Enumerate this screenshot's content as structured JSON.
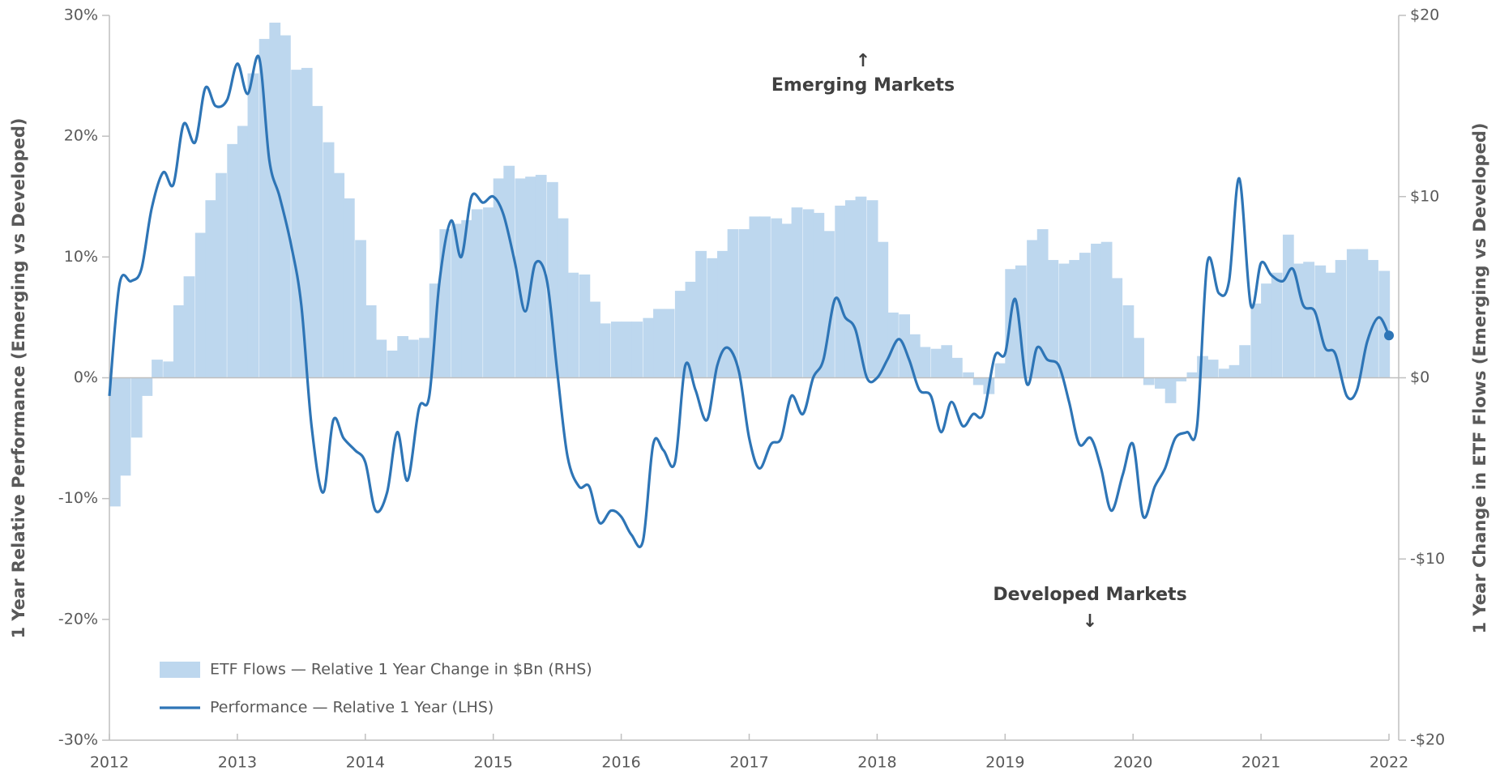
{
  "chart_data": {
    "type": "bar-line",
    "y_label": "1 Year Relative Performance (Emerging vs Developed)",
    "y2_label": "1 Year Change in ETF Flows (Emerging vs Developed)",
    "annotations": [
      "↑",
      "Emerging Markets",
      "Developed Markets",
      "↓"
    ],
    "xlim": [
      2012,
      2022
    ],
    "xticks": [
      2012,
      2013,
      2014,
      2015,
      2016,
      2017,
      2018,
      2019,
      2020,
      2021,
      2022
    ],
    "ylim": [
      -30,
      30
    ],
    "yticks": [
      {
        "value": -30,
        "label": "-30%"
      },
      {
        "value": -20,
        "label": "-20%"
      },
      {
        "value": -10,
        "label": "-10%"
      },
      {
        "value": 0,
        "label": "0%"
      },
      {
        "value": 10,
        "label": "10%"
      },
      {
        "value": 20,
        "label": "20%"
      },
      {
        "value": 30,
        "label": "30%"
      }
    ],
    "y2lim": [
      -20,
      20
    ],
    "y2ticks": [
      {
        "value": -20,
        "label": "-$20"
      },
      {
        "value": -10,
        "label": "-$10"
      },
      {
        "value": 0,
        "label": "$0"
      },
      {
        "value": 10,
        "label": "$10"
      },
      {
        "value": 20,
        "label": "$20"
      }
    ],
    "series": [
      {
        "name": "ETF Flows — Relative 1 Year Change in $Bn (RHS)",
        "color": "#bdd7ee",
        "axis": "y2",
        "kind": "bar",
        "x": [
          2012,
          2012.08,
          2012.17,
          2012.25,
          2012.33,
          2012.42,
          2012.5,
          2012.58,
          2012.67,
          2012.75,
          2012.83,
          2012.92,
          2013,
          2013.08,
          2013.17,
          2013.25,
          2013.33,
          2013.42,
          2013.5,
          2013.58,
          2013.67,
          2013.75,
          2013.83,
          2013.92,
          2014,
          2014.08,
          2014.17,
          2014.25,
          2014.33,
          2014.42,
          2014.5,
          2014.58,
          2014.67,
          2014.75,
          2014.83,
          2014.92,
          2015,
          2015.08,
          2015.17,
          2015.25,
          2015.33,
          2015.42,
          2015.5,
          2015.58,
          2015.67,
          2015.75,
          2015.83,
          2015.92,
          2016,
          2016.08,
          2016.17,
          2016.25,
          2016.33,
          2016.42,
          2016.5,
          2016.58,
          2016.67,
          2016.75,
          2016.83,
          2016.92,
          2017,
          2017.08,
          2017.17,
          2017.25,
          2017.33,
          2017.42,
          2017.5,
          2017.58,
          2017.67,
          2017.75,
          2017.83,
          2017.92,
          2018,
          2018.08,
          2018.17,
          2018.25,
          2018.33,
          2018.42,
          2018.5,
          2018.58,
          2018.67,
          2018.75,
          2018.83,
          2018.92,
          2019,
          2019.08,
          2019.17,
          2019.25,
          2019.33,
          2019.42,
          2019.5,
          2019.58,
          2019.67,
          2019.75,
          2019.83,
          2019.92,
          2020,
          2020.08,
          2020.17,
          2020.25,
          2020.33,
          2020.42,
          2020.5,
          2020.58,
          2020.67,
          2020.75,
          2020.83,
          2020.92,
          2021,
          2021.08,
          2021.17,
          2021.25,
          2021.33,
          2021.42,
          2021.5,
          2021.58,
          2021.67,
          2021.75,
          2021.83,
          2021.92
        ],
        "values": [
          -7.1,
          -5.4,
          -3.3,
          -1.0,
          1.0,
          0.9,
          4.0,
          5.6,
          8.0,
          9.8,
          11.3,
          12.9,
          13.9,
          16.8,
          18.7,
          19.6,
          18.9,
          17.0,
          17.1,
          15.0,
          13.0,
          11.3,
          9.9,
          7.6,
          4.0,
          2.1,
          1.5,
          2.3,
          2.1,
          2.2,
          5.2,
          8.2,
          8.5,
          8.7,
          9.3,
          9.4,
          11.0,
          11.7,
          11.0,
          11.1,
          11.2,
          10.8,
          8.8,
          5.8,
          5.7,
          4.2,
          3.0,
          3.1,
          3.1,
          3.1,
          3.3,
          3.8,
          3.8,
          4.8,
          5.3,
          7.0,
          6.6,
          7.0,
          8.2,
          8.2,
          8.9,
          8.9,
          8.8,
          8.5,
          9.4,
          9.3,
          9.1,
          8.1,
          9.5,
          9.8,
          10.0,
          9.8,
          7.5,
          3.6,
          3.5,
          2.4,
          1.7,
          1.6,
          1.8,
          1.1,
          0.3,
          -0.4,
          -0.9,
          0.8,
          6.0,
          6.2,
          7.6,
          8.2,
          6.5,
          6.3,
          6.5,
          6.9,
          7.4,
          7.5,
          5.5,
          4.0,
          2.2,
          -0.4,
          -0.6,
          -1.4,
          -0.2,
          0.3,
          1.2,
          1.0,
          0.5,
          0.7,
          1.8,
          4.1,
          5.2,
          5.8,
          7.9,
          6.3,
          6.4,
          6.2,
          5.8,
          6.5,
          7.1,
          7.1,
          6.5,
          5.9
        ]
      },
      {
        "name": "Performance — Relative 1 Year (LHS)",
        "color": "#2e75b6",
        "axis": "y",
        "kind": "line",
        "x": [
          2012,
          2012.08,
          2012.17,
          2012.25,
          2012.33,
          2012.42,
          2012.5,
          2012.58,
          2012.67,
          2012.75,
          2012.83,
          2012.92,
          2013,
          2013.08,
          2013.17,
          2013.25,
          2013.33,
          2013.42,
          2013.5,
          2013.58,
          2013.67,
          2013.75,
          2013.83,
          2013.92,
          2014,
          2014.08,
          2014.17,
          2014.25,
          2014.33,
          2014.42,
          2014.5,
          2014.58,
          2014.67,
          2014.75,
          2014.83,
          2014.92,
          2015,
          2015.08,
          2015.17,
          2015.25,
          2015.33,
          2015.42,
          2015.5,
          2015.58,
          2015.67,
          2015.75,
          2015.83,
          2015.92,
          2016,
          2016.08,
          2016.17,
          2016.25,
          2016.33,
          2016.42,
          2016.5,
          2016.58,
          2016.67,
          2016.75,
          2016.83,
          2016.92,
          2017,
          2017.08,
          2017.17,
          2017.25,
          2017.33,
          2017.42,
          2017.5,
          2017.58,
          2017.67,
          2017.75,
          2017.83,
          2017.92,
          2018,
          2018.08,
          2018.17,
          2018.25,
          2018.33,
          2018.42,
          2018.5,
          2018.58,
          2018.67,
          2018.75,
          2018.83,
          2018.92,
          2019,
          2019.08,
          2019.17,
          2019.25,
          2019.33,
          2019.42,
          2019.5,
          2019.58,
          2019.67,
          2019.75,
          2019.83,
          2019.92,
          2020,
          2020.08,
          2020.17,
          2020.25,
          2020.33,
          2020.42,
          2020.5,
          2020.58,
          2020.67,
          2020.75,
          2020.83,
          2020.92,
          2021,
          2021.08,
          2021.17,
          2021.25,
          2021.33,
          2021.42,
          2021.5,
          2021.58,
          2021.67,
          2021.75,
          2021.83,
          2021.92,
          2022
        ],
        "values": [
          -1.5,
          7.8,
          8.0,
          9.0,
          14.0,
          17.0,
          16.0,
          21.0,
          19.5,
          24.0,
          22.5,
          23.0,
          26.0,
          23.5,
          26.5,
          18.0,
          15.0,
          11.0,
          6.0,
          -4.0,
          -9.5,
          -3.5,
          -5.0,
          -6.0,
          -7.0,
          -11.0,
          -9.5,
          -4.5,
          -8.5,
          -2.5,
          -1.5,
          8.0,
          13.0,
          10.0,
          15.0,
          14.5,
          15.0,
          13.5,
          9.5,
          5.5,
          9.5,
          8.0,
          0.5,
          -6.5,
          -9.0,
          -9.0,
          -12.0,
          -11.0,
          -11.5,
          -13.0,
          -13.5,
          -5.5,
          -6.0,
          -7.0,
          1.0,
          -1.0,
          -3.5,
          1.0,
          2.5,
          0.5,
          -5.0,
          -7.5,
          -5.5,
          -5.0,
          -1.5,
          -3.0,
          0.0,
          1.5,
          6.5,
          5.0,
          4.0,
          0.0,
          0.0,
          1.5,
          3.2,
          1.5,
          -1.0,
          -1.5,
          -4.5,
          -2.0,
          -4.0,
          -3.0,
          -3.0,
          1.8,
          2.0,
          6.5,
          -0.5,
          2.5,
          1.5,
          1.0,
          -2.0,
          -5.5,
          -5.0,
          -7.5,
          -11.0,
          -8.0,
          -5.5,
          -11.5,
          -9.0,
          -7.5,
          -5.0,
          -4.5,
          -4.0,
          9.5,
          7.0,
          8.0,
          16.5,
          6.0,
          9.5,
          8.5,
          8.0,
          9.0,
          6.0,
          5.5,
          2.5,
          2.0,
          -1.5,
          -1.0,
          3.0,
          5.0,
          3.5
        ]
      }
    ]
  }
}
